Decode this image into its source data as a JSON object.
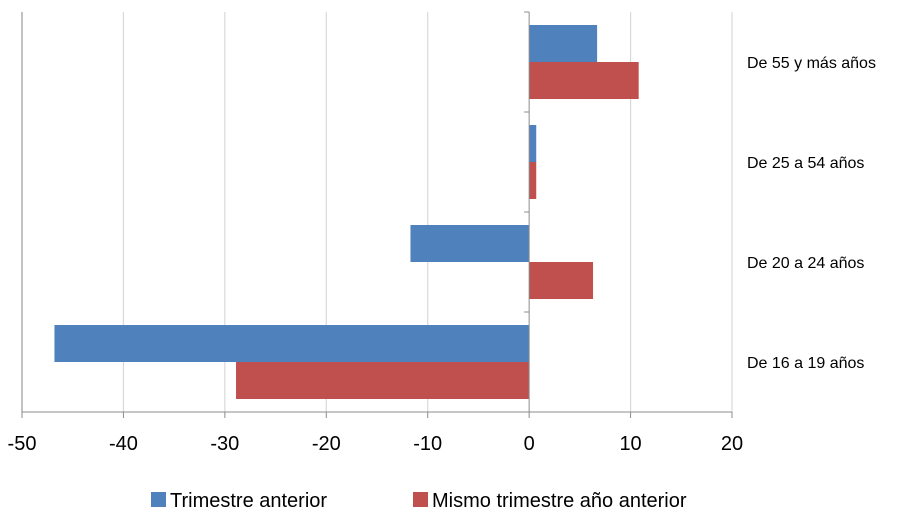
{
  "chart_data": {
    "type": "bar",
    "orientation": "horizontal",
    "categories": [
      "De 16 a 19 años",
      "De 20 a 24 años",
      "De 25 a 54 años",
      "De 55 y más años"
    ],
    "series": [
      {
        "name": "Trimestre anterior",
        "color": "#4F81BD",
        "values": [
          -46.8,
          -11.7,
          0.7,
          6.7
        ]
      },
      {
        "name": "Mismo trimestre año anterior",
        "color": "#C0504D",
        "values": [
          -28.9,
          6.3,
          0.7,
          10.8
        ]
      }
    ],
    "xlim": [
      -50,
      20
    ],
    "xticks": [
      -50,
      -40,
      -30,
      -20,
      -10,
      0,
      10,
      20
    ],
    "title": "",
    "xlabel": "",
    "ylabel": "",
    "grid": "vertical",
    "legend_position": "bottom"
  }
}
